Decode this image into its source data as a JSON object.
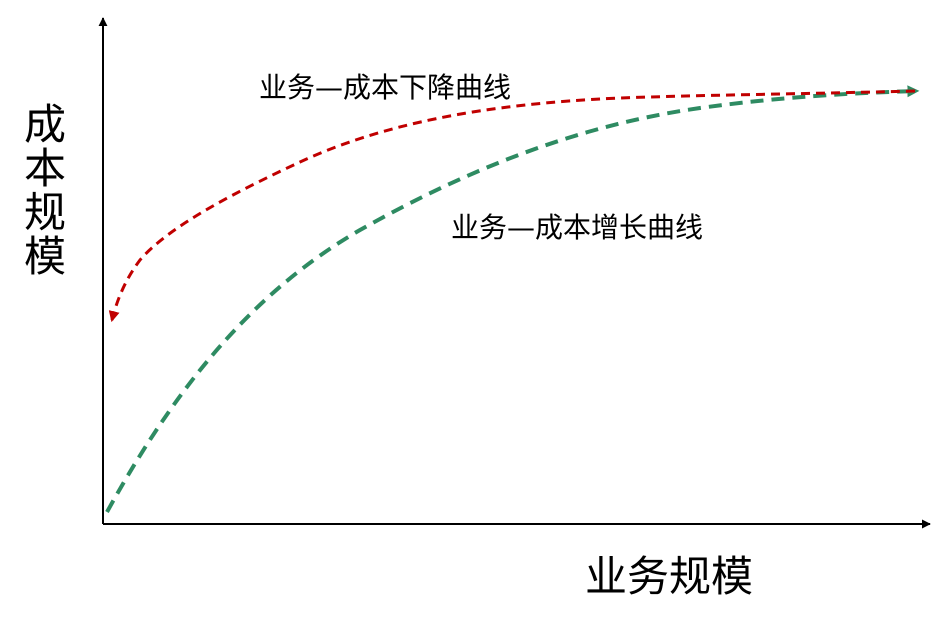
{
  "axes": {
    "y_label": "成本规模",
    "x_label": "业务规模"
  },
  "curves": {
    "decrease": {
      "label": "业务—成本下降曲线",
      "color": "#c00000"
    },
    "increase": {
      "label": "业务—成本增长曲线",
      "color": "#2e8b62"
    }
  },
  "axis_color": "#000000"
}
